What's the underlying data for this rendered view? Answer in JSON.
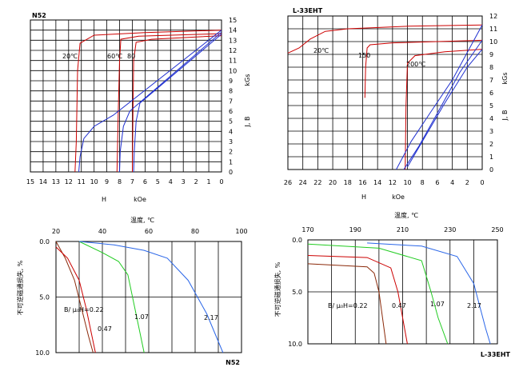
{
  "colors": {
    "red": "#cc0000",
    "blue": "#1f2fd0",
    "green": "#22cc22",
    "brown": "#8b2a0a",
    "bblue": "#2a66e8"
  },
  "chart_data": [
    {
      "type": "line",
      "title": "N52",
      "xlabel": "H    kOe",
      "ylabel": "kGs",
      "ylabel_sym": "J, B",
      "xlim": [
        15,
        0
      ],
      "ylim": [
        0,
        15
      ],
      "x_ticks": [
        "15",
        "14",
        "13",
        "12",
        "11",
        "10",
        "9",
        "8",
        "7",
        "6",
        "5",
        "4",
        "3",
        "2",
        "1",
        "0"
      ],
      "y_ticks": [
        "0",
        "1",
        "2",
        "3",
        "4",
        "5",
        "6",
        "7",
        "8",
        "9",
        "10",
        "11",
        "12",
        "13",
        "14",
        "15"
      ],
      "annotations": [
        "20℃",
        "60℃",
        "80"
      ],
      "series": [
        {
          "name": "J 20℃",
          "color": "red",
          "points": [
            [
              11.5,
              0
            ],
            [
              11.4,
              3
            ],
            [
              11.3,
              10
            ],
            [
              11.1,
              12.7
            ],
            [
              10,
              13.5
            ],
            [
              6,
              13.75
            ],
            [
              0,
              14
            ]
          ]
        },
        {
          "name": "J 60℃",
          "color": "red",
          "points": [
            [
              8.2,
              0
            ],
            [
              8.1,
              6
            ],
            [
              8,
              11
            ],
            [
              7.9,
              13.1
            ],
            [
              6.5,
              13.4
            ],
            [
              0,
              13.65
            ]
          ]
        },
        {
          "name": "J 80℃",
          "color": "red",
          "points": [
            [
              7,
              0
            ],
            [
              6.95,
              6
            ],
            [
              6.9,
              11
            ],
            [
              6.7,
              12.8
            ],
            [
              5.5,
              13.1
            ],
            [
              0,
              13.45
            ]
          ]
        },
        {
          "name": "B 20℃",
          "color": "blue",
          "points": [
            [
              11.2,
              0
            ],
            [
              11.1,
              1.5
            ],
            [
              10.8,
              3.3
            ],
            [
              10,
              4.5
            ],
            [
              8.5,
              5.6
            ],
            [
              0,
              14
            ]
          ]
        },
        {
          "name": "B 60℃",
          "color": "blue",
          "points": [
            [
              8,
              0
            ],
            [
              7.95,
              2
            ],
            [
              7.7,
              4.5
            ],
            [
              7.2,
              6
            ],
            [
              0,
              13.8
            ]
          ]
        },
        {
          "name": "B 80℃",
          "color": "blue",
          "points": [
            [
              6.9,
              0
            ],
            [
              6.85,
              2
            ],
            [
              6.7,
              5
            ],
            [
              6.4,
              6.8
            ],
            [
              0,
              13.6
            ]
          ]
        }
      ]
    },
    {
      "type": "line",
      "title": "L-33EHT",
      "xlabel": "H    kOe",
      "ylabel": "kGs",
      "ylabel_sym": "J, B",
      "xlim": [
        26,
        0
      ],
      "ylim": [
        0,
        12
      ],
      "x_ticks": [
        "26",
        "24",
        "22",
        "20",
        "18",
        "16",
        "14",
        "12",
        "10",
        "8",
        "6",
        "4",
        "2",
        "0"
      ],
      "y_ticks": [
        "0",
        "1",
        "2",
        "3",
        "4",
        "5",
        "6",
        "7",
        "8",
        "9",
        "10",
        "11",
        "12"
      ],
      "annotations": [
        "20℃",
        "150",
        "200℃"
      ],
      "series": [
        {
          "name": "J 20℃",
          "color": "red",
          "points": [
            [
              26,
              9.1
            ],
            [
              24.5,
              9.5
            ],
            [
              23,
              10.2
            ],
            [
              21,
              10.8
            ],
            [
              18,
              11
            ],
            [
              10,
              11.2
            ],
            [
              0,
              11.3
            ]
          ]
        },
        {
          "name": "J 150℃",
          "color": "red",
          "points": [
            [
              15.7,
              5.6
            ],
            [
              15.6,
              8
            ],
            [
              15.4,
              9.5
            ],
            [
              15,
              9.75
            ],
            [
              12,
              9.9
            ],
            [
              0,
              10.1
            ]
          ]
        },
        {
          "name": "J 200℃",
          "color": "red",
          "points": [
            [
              10.3,
              0
            ],
            [
              10.2,
              5
            ],
            [
              10,
              8.3
            ],
            [
              9,
              8.9
            ],
            [
              5,
              9.2
            ],
            [
              0,
              9.4
            ]
          ]
        },
        {
          "name": "B 20℃",
          "color": "blue",
          "points": [
            [
              11.5,
              0
            ],
            [
              9.5,
              2.2
            ],
            [
              7,
              4.4
            ],
            [
              4,
              7
            ],
            [
              0,
              11.3
            ]
          ]
        },
        {
          "name": "B 150℃",
          "color": "blue",
          "points": [
            [
              10.5,
              0
            ],
            [
              8.5,
              1.8
            ],
            [
              6,
              4.4
            ],
            [
              3,
              7.6
            ],
            [
              0,
              10.1
            ]
          ]
        },
        {
          "name": "B 200℃",
          "color": "blue",
          "points": [
            [
              10,
              0.2
            ],
            [
              8,
              2.2
            ],
            [
              5,
              5.2
            ],
            [
              2,
              8
            ],
            [
              0,
              9.4
            ]
          ]
        }
      ]
    },
    {
      "type": "line",
      "title": "N52",
      "xlabel": "温度, ℃",
      "ylabel": "不可逆磁通损失, %",
      "xlim": [
        20,
        100
      ],
      "ylim": [
        0,
        10
      ],
      "x_ticks": [
        "20",
        "40",
        "60",
        "80",
        "100"
      ],
      "y_ticks": [
        "0.0",
        "5.0",
        "10.0"
      ],
      "annotations": [
        "B/ μ₀H=0.22",
        "0.47",
        "1.07",
        "2.17"
      ],
      "series": [
        {
          "name": "0.22",
          "color": "brown",
          "points": [
            [
              20,
              0
            ],
            [
              24,
              1.5
            ],
            [
              28,
              3.5
            ],
            [
              31,
              6
            ],
            [
              34,
              8.5
            ],
            [
              36,
              10
            ]
          ]
        },
        {
          "name": "0.47",
          "color": "red",
          "points": [
            [
              20,
              0.5
            ],
            [
              25,
              1.5
            ],
            [
              30,
              3.5
            ],
            [
              33,
              6
            ],
            [
              37,
              10
            ]
          ]
        },
        {
          "name": "1.07",
          "color": "green",
          "points": [
            [
              30,
              0
            ],
            [
              40,
              1
            ],
            [
              47,
              1.8
            ],
            [
              51,
              3
            ],
            [
              54,
              6
            ],
            [
              58,
              10
            ]
          ]
        },
        {
          "name": "2.17",
          "color": "bblue",
          "points": [
            [
              30,
              0
            ],
            [
              45,
              0.3
            ],
            [
              58,
              0.8
            ],
            [
              68,
              1.5
            ],
            [
              77,
              3.5
            ],
            [
              85,
              6.5
            ],
            [
              92,
              10
            ]
          ]
        }
      ]
    },
    {
      "type": "line",
      "title": "L-33EHT",
      "xlabel": "温度, ℃",
      "ylabel": "不可逆磁通损失, %",
      "xlim": [
        170,
        250
      ],
      "ylim": [
        0,
        10
      ],
      "x_ticks": [
        "170",
        "190",
        "210",
        "230",
        "250"
      ],
      "y_ticks": [
        "0.0",
        "5.0",
        "10.0"
      ],
      "annotations": [
        "B/ μ₀H=0.22",
        "0.47",
        "1.07",
        "2.17"
      ],
      "series": [
        {
          "name": "0.22",
          "color": "brown",
          "points": [
            [
              170,
              2.3
            ],
            [
              195,
              2.6
            ],
            [
              198,
              3.2
            ],
            [
              200,
              5
            ],
            [
              203,
              10
            ]
          ]
        },
        {
          "name": "0.47",
          "color": "red",
          "points": [
            [
              170,
              1.5
            ],
            [
              195,
              1.7
            ],
            [
              205,
              2.7
            ],
            [
              208,
              5
            ],
            [
              212,
              10
            ]
          ]
        },
        {
          "name": "1.07",
          "color": "green",
          "points": [
            [
              170,
              0.4
            ],
            [
              200,
              0.8
            ],
            [
              218,
              2
            ],
            [
              222,
              5
            ],
            [
              225,
              7.5
            ],
            [
              229,
              10
            ]
          ]
        },
        {
          "name": "2.17",
          "color": "bblue",
          "points": [
            [
              195,
              0.3
            ],
            [
              218,
              0.6
            ],
            [
              233,
              1.6
            ],
            [
              240,
              4.2
            ],
            [
              245,
              8.5
            ],
            [
              247,
              10
            ]
          ]
        }
      ]
    }
  ]
}
